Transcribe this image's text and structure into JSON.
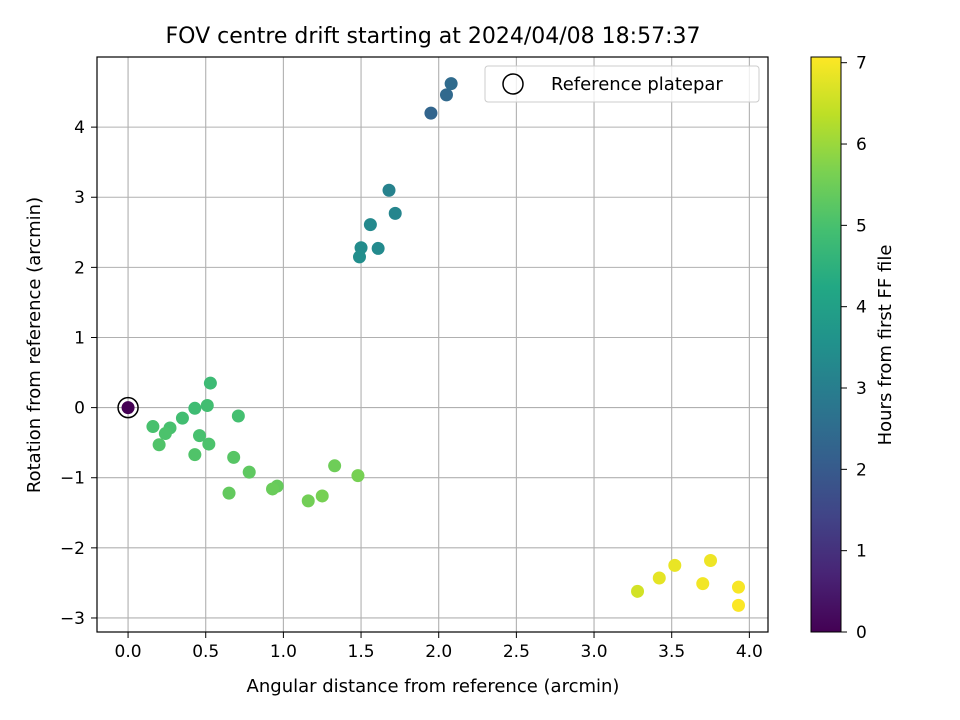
{
  "chart_data": {
    "type": "scatter",
    "title": "FOV centre drift starting at 2024/04/08 18:57:37",
    "xlabel": "Angular distance from reference (arcmin)",
    "ylabel": "Rotation from reference (arcmin)",
    "xlim": [
      -0.2,
      4.12
    ],
    "ylim": [
      -3.2,
      5.0
    ],
    "xticks": [
      0.0,
      0.5,
      1.0,
      1.5,
      2.0,
      2.5,
      3.0,
      3.5,
      4.0
    ],
    "xtick_labels": [
      "0.0",
      "0.5",
      "1.0",
      "1.5",
      "2.0",
      "2.5",
      "3.0",
      "3.5",
      "4.0"
    ],
    "yticks": [
      -3,
      -2,
      -1,
      0,
      1,
      2,
      3,
      4
    ],
    "ytick_labels": [
      "−3",
      "−2",
      "−1",
      "0",
      "1",
      "2",
      "3",
      "4"
    ],
    "grid": true,
    "legend": {
      "position": "top-right",
      "label": "Reference platepar"
    },
    "reference_point": {
      "x": 0.0,
      "y": 0.0
    },
    "colorbar": {
      "label": "Hours from first FF file",
      "colormap": "viridis",
      "range": [
        0,
        7.07
      ],
      "ticks": [
        0,
        1,
        2,
        3,
        4,
        5,
        6,
        7
      ],
      "tick_labels": [
        "0",
        "1",
        "2",
        "3",
        "4",
        "5",
        "6",
        "7"
      ]
    },
    "points": [
      {
        "x": 0.0,
        "y": 0.0,
        "c": 0.0
      },
      {
        "x": 1.95,
        "y": 4.2,
        "c": 2.3
      },
      {
        "x": 2.05,
        "y": 4.46,
        "c": 2.4
      },
      {
        "x": 2.08,
        "y": 4.62,
        "c": 2.45
      },
      {
        "x": 1.68,
        "y": 3.1,
        "c": 3.1
      },
      {
        "x": 1.72,
        "y": 2.77,
        "c": 3.2
      },
      {
        "x": 1.56,
        "y": 2.61,
        "c": 3.3
      },
      {
        "x": 1.5,
        "y": 2.28,
        "c": 3.4
      },
      {
        "x": 1.61,
        "y": 2.27,
        "c": 3.35
      },
      {
        "x": 1.49,
        "y": 2.15,
        "c": 3.45
      },
      {
        "x": 0.53,
        "y": 0.35,
        "c": 4.8
      },
      {
        "x": 0.51,
        "y": 0.03,
        "c": 4.9
      },
      {
        "x": 0.43,
        "y": -0.01,
        "c": 4.85
      },
      {
        "x": 0.71,
        "y": -0.12,
        "c": 4.95
      },
      {
        "x": 0.35,
        "y": -0.15,
        "c": 4.9
      },
      {
        "x": 0.16,
        "y": -0.27,
        "c": 5.0
      },
      {
        "x": 0.27,
        "y": -0.29,
        "c": 5.0
      },
      {
        "x": 0.24,
        "y": -0.37,
        "c": 5.05
      },
      {
        "x": 0.46,
        "y": -0.4,
        "c": 5.0
      },
      {
        "x": 0.52,
        "y": -0.52,
        "c": 5.05
      },
      {
        "x": 0.2,
        "y": -0.53,
        "c": 5.1
      },
      {
        "x": 0.43,
        "y": -0.67,
        "c": 5.1
      },
      {
        "x": 0.68,
        "y": -0.71,
        "c": 5.2
      },
      {
        "x": 0.78,
        "y": -0.92,
        "c": 5.3
      },
      {
        "x": 1.33,
        "y": -0.83,
        "c": 5.5
      },
      {
        "x": 1.48,
        "y": -0.97,
        "c": 5.6
      },
      {
        "x": 0.96,
        "y": -1.12,
        "c": 5.4
      },
      {
        "x": 0.93,
        "y": -1.16,
        "c": 5.45
      },
      {
        "x": 0.65,
        "y": -1.22,
        "c": 5.35
      },
      {
        "x": 1.25,
        "y": -1.26,
        "c": 5.6
      },
      {
        "x": 1.16,
        "y": -1.33,
        "c": 5.55
      },
      {
        "x": 3.75,
        "y": -2.18,
        "c": 6.9
      },
      {
        "x": 3.52,
        "y": -2.25,
        "c": 6.85
      },
      {
        "x": 3.42,
        "y": -2.43,
        "c": 6.8
      },
      {
        "x": 3.7,
        "y": -2.51,
        "c": 6.95
      },
      {
        "x": 3.93,
        "y": -2.56,
        "c": 7.0
      },
      {
        "x": 3.28,
        "y": -2.62,
        "c": 6.6
      },
      {
        "x": 3.93,
        "y": -2.82,
        "c": 7.05
      }
    ]
  }
}
